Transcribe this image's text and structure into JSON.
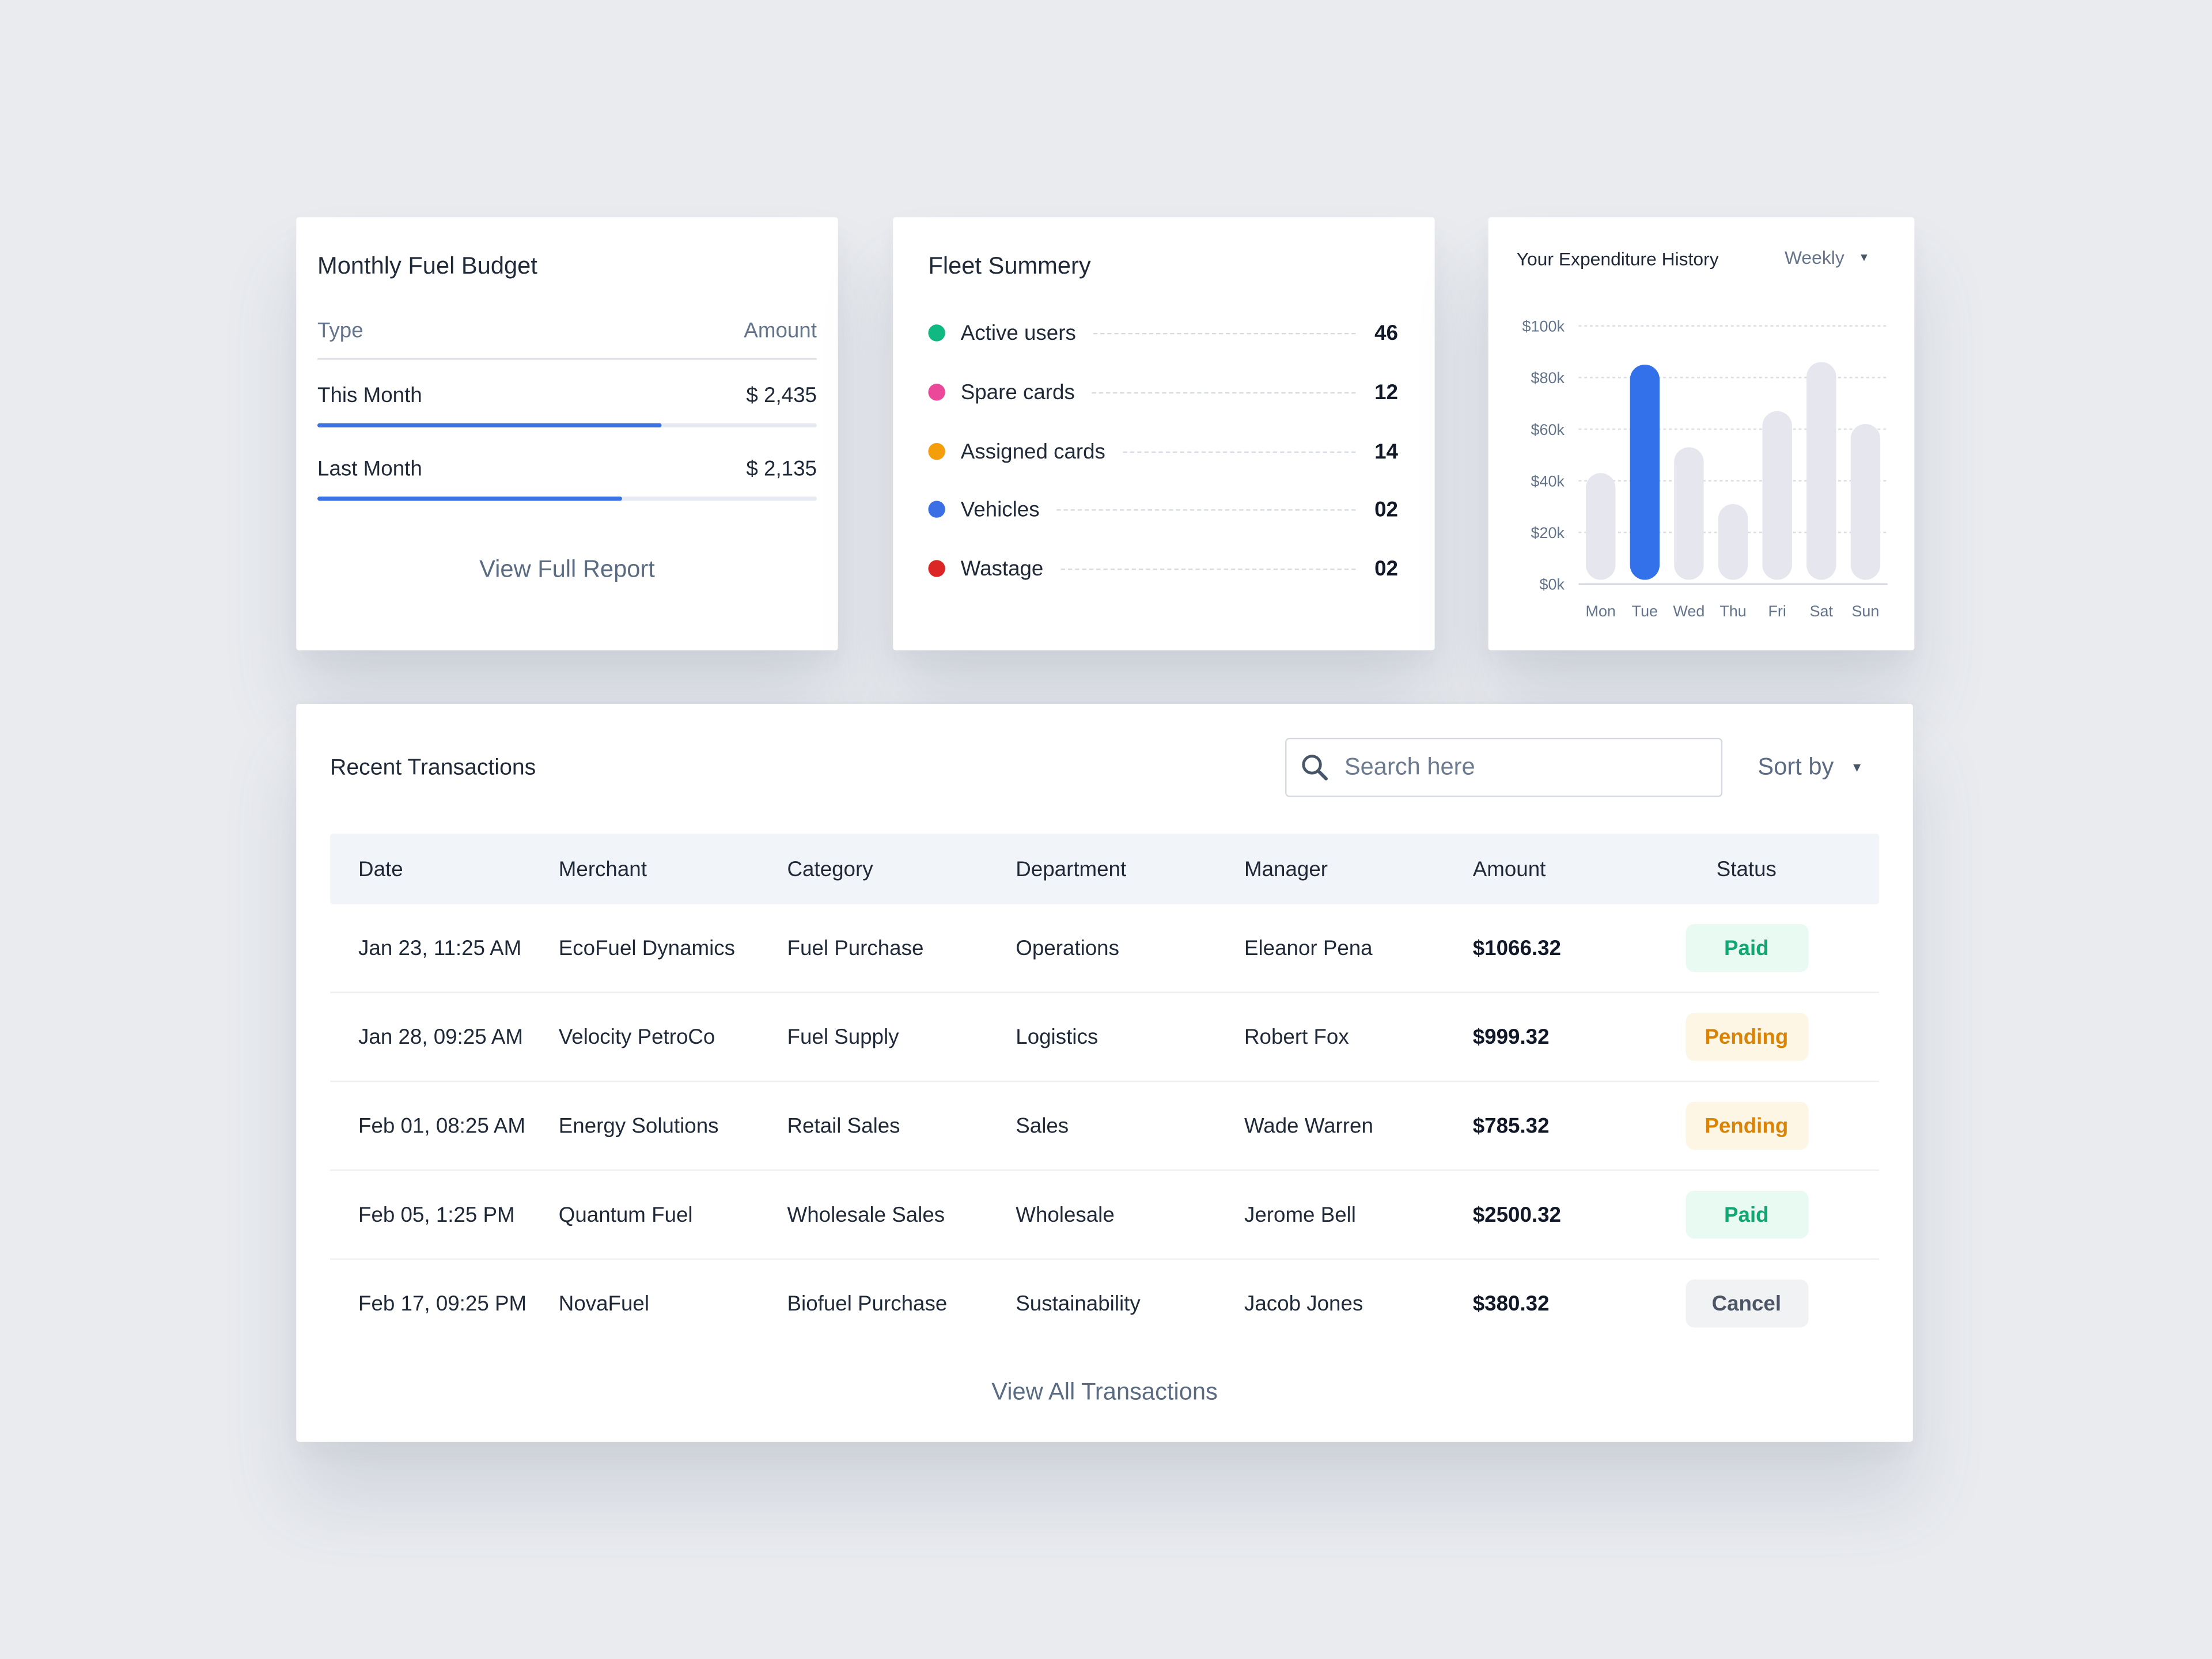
{
  "budget": {
    "title": "Monthly Fuel Budget",
    "col_type": "Type",
    "col_amount": "Amount",
    "rows": [
      {
        "label": "This Month",
        "amount": "$ 2,435",
        "progress": 0.69
      },
      {
        "label": "Last Month",
        "amount": "$ 2,135",
        "progress": 0.61
      }
    ],
    "link": "View Full Report",
    "accent": "#3b73e5"
  },
  "fleet": {
    "title": "Fleet Summery",
    "items": [
      {
        "label": "Active users",
        "value": "46",
        "color": "#10b981"
      },
      {
        "label": "Spare cards",
        "value": "12",
        "color": "#ec4899"
      },
      {
        "label": "Assigned cards",
        "value": "14",
        "color": "#f59e0b"
      },
      {
        "label": "Vehicles",
        "value": "02",
        "color": "#3b6fe5"
      },
      {
        "label": "Wastage",
        "value": "02",
        "color": "#dc2626"
      }
    ]
  },
  "expenditure": {
    "title": "Your Expenditure History",
    "period": "Weekly"
  },
  "chart_data": {
    "type": "bar",
    "categories": [
      "Mon",
      "Tue",
      "Wed",
      "Thu",
      "Fri",
      "Sat",
      "Sun"
    ],
    "values": [
      43000,
      85000,
      53000,
      31000,
      67000,
      86000,
      62000
    ],
    "highlight": "Tue",
    "ylim": [
      0,
      100000
    ],
    "yticks": [
      "$0k",
      "$20k",
      "$40k",
      "$60k",
      "$80k",
      "$100k"
    ],
    "grid": true,
    "colors": {
      "highlight": "#3371ea",
      "bar": "#e6e7ee"
    }
  },
  "transactions": {
    "title": "Recent Transactions",
    "search_placeholder": "Search here",
    "sort_label": "Sort by",
    "columns": [
      "Date",
      "Merchant",
      "Category",
      "Department",
      "Manager",
      "Amount",
      "Status"
    ],
    "rows": [
      {
        "date": "Jan 23, 11:25 AM",
        "merchant": "EcoFuel Dynamics",
        "category": "Fuel Purchase",
        "department": "Operations",
        "manager": "Eleanor Pena",
        "amount": "$1066.32",
        "status": "Paid"
      },
      {
        "date": "Jan 28, 09:25 AM",
        "merchant": "Velocity PetroCo",
        "category": "Fuel Supply",
        "department": "Logistics",
        "manager": "Robert Fox",
        "amount": "$999.32",
        "status": "Pending"
      },
      {
        "date": "Feb 01, 08:25 AM",
        "merchant": "Energy Solutions",
        "category": "Retail Sales",
        "department": "Sales",
        "manager": "Wade Warren",
        "amount": "$785.32",
        "status": "Pending"
      },
      {
        "date": "Feb 05, 1:25 PM",
        "merchant": "Quantum Fuel",
        "category": "Wholesale Sales",
        "department": "Wholesale",
        "manager": "Jerome Bell",
        "amount": "$2500.32",
        "status": "Paid"
      },
      {
        "date": "Feb 17, 09:25 PM",
        "merchant": "NovaFuel",
        "category": "Biofuel Purchase",
        "department": "Sustainability",
        "manager": "Jacob Jones",
        "amount": "$380.32",
        "status": "Cancel"
      }
    ],
    "status_styles": {
      "Paid": {
        "bg": "#e9faf3",
        "fg": "#10a774"
      },
      "Pending": {
        "bg": "#fdf6e4",
        "fg": "#d98407"
      },
      "Cancel": {
        "bg": "#f1f2f4",
        "fg": "#4b5563"
      }
    },
    "link": "View All Transactions"
  }
}
